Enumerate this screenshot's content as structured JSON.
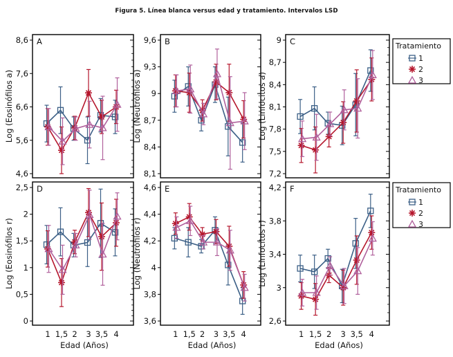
{
  "title": "Figura 5. Línea blanca versus edad y tratamiento. Intervalos LSD",
  "legend": {
    "title": "Tratamiento",
    "entries": [
      {
        "label": "1",
        "marker": "square",
        "color": "#3b5f86"
      },
      {
        "label": "2",
        "marker": "asterisk",
        "color": "#b5162c"
      },
      {
        "label": "3",
        "marker": "triangle",
        "color": "#b0609c"
      }
    ]
  },
  "chart_data": [
    {
      "type": "line",
      "panel": "A",
      "ylabel": "Log (Eosinófilos a)",
      "xlabel": "",
      "categories": [
        "1",
        "1,5",
        "2",
        "3",
        "3,5",
        "4"
      ],
      "ylim": [
        4.6,
        8.6
      ],
      "yticks": [
        4.6,
        5.6,
        6.6,
        7.6,
        8.6
      ],
      "ytick_labels": [
        "4,6",
        "5,6",
        "6,6",
        "7,6",
        "8,6"
      ],
      "minor_ticks": 5,
      "series": [
        {
          "name": "1",
          "values": [
            6.1,
            6.5,
            5.95,
            5.6,
            6.35,
            6.3
          ],
          "ci": [
            0.55,
            0.7,
            0.35,
            0.7,
            0.5,
            0.5
          ]
        },
        {
          "name": "2",
          "values": [
            6.0,
            5.3,
            5.97,
            7.02,
            6.3,
            6.6
          ],
          "ci": [
            0.55,
            0.7,
            0.35,
            0.7,
            0.5,
            0.5
          ]
        },
        {
          "name": "3",
          "values": [
            6.0,
            5.57,
            5.95,
            6.07,
            5.97,
            6.67
          ],
          "ci": [
            0.55,
            0.7,
            0.35,
            0.7,
            0.95,
            0.8
          ]
        }
      ]
    },
    {
      "type": "line",
      "panel": "B",
      "ylabel": "Log (Neutrófilos a)",
      "xlabel": "",
      "categories": [
        "1",
        "1,5",
        "2",
        "3",
        "3,5",
        "4"
      ],
      "ylim": [
        8.1,
        9.6
      ],
      "yticks": [
        8.1,
        8.4,
        8.7,
        9.0,
        9.3,
        9.6
      ],
      "ytick_labels": [
        "8,1",
        "8,4",
        "8,7",
        "9",
        "9,3",
        "9,6"
      ],
      "minor_ticks": 3,
      "series": [
        {
          "name": "1",
          "values": [
            8.97,
            9.08,
            8.7,
            9.1,
            8.63,
            8.45
          ],
          "ci": [
            0.18,
            0.22,
            0.12,
            0.2,
            0.33,
            0.22
          ]
        },
        {
          "name": "2",
          "values": [
            9.03,
            9.01,
            8.81,
            9.13,
            9.01,
            8.71
          ],
          "ci": [
            0.18,
            0.22,
            0.12,
            0.2,
            0.32,
            0.21
          ]
        },
        {
          "name": "3",
          "values": [
            9.03,
            9.05,
            8.77,
            9.22,
            8.67,
            8.69
          ],
          "ci": [
            0.18,
            0.27,
            0.12,
            0.28,
            0.52,
            0.32
          ]
        }
      ]
    },
    {
      "type": "line",
      "panel": "C",
      "ylabel": "Log (Linfocitos a)",
      "xlabel": "",
      "categories": [
        "1",
        "1,5",
        "2",
        "3",
        "3,5",
        "4"
      ],
      "ylim": [
        7.2,
        9.0
      ],
      "yticks": [
        7.2,
        7.5,
        7.8,
        8.1,
        8.4,
        8.7,
        9.0
      ],
      "ytick_labels": [
        "7,2",
        "7,5",
        "7,8",
        "8,1",
        "8,4",
        "8,7",
        "9"
      ],
      "minor_ticks": 3,
      "series": [
        {
          "name": "1",
          "values": [
            7.97,
            8.08,
            7.88,
            7.85,
            8.13,
            8.59
          ],
          "ci": [
            0.23,
            0.29,
            0.15,
            0.26,
            0.42,
            0.28
          ]
        },
        {
          "name": "2",
          "values": [
            7.58,
            7.52,
            7.7,
            7.89,
            8.18,
            8.47
          ],
          "ci": [
            0.23,
            0.31,
            0.14,
            0.28,
            0.42,
            0.29
          ]
        },
        {
          "name": "3",
          "values": [
            7.67,
            7.69,
            7.87,
            8.06,
            8.08,
            8.53
          ],
          "ci": [
            0.24,
            0.31,
            0.16,
            0.27,
            0.4,
            0.33
          ]
        }
      ]
    },
    {
      "type": "line",
      "panel": "D",
      "ylabel": "Log (Eosinófilos r)",
      "xlabel": "Edad (Años)",
      "categories": [
        "1",
        "1,5",
        "2",
        "3",
        "3,5",
        "4"
      ],
      "ylim": [
        0,
        2.5
      ],
      "yticks": [
        0,
        0.5,
        1.0,
        1.5,
        2.0,
        2.5
      ],
      "ytick_labels": [
        "0",
        "0,5",
        "1",
        "1,5",
        "2",
        "2,5"
      ],
      "minor_ticks": 5,
      "series": [
        {
          "name": "1",
          "values": [
            1.43,
            1.67,
            1.42,
            1.47,
            1.83,
            1.66
          ],
          "ci": [
            0.36,
            0.45,
            0.22,
            0.45,
            0.64,
            0.44
          ]
        },
        {
          "name": "2",
          "values": [
            1.35,
            0.72,
            1.48,
            2.03,
            1.58,
            1.84
          ],
          "ci": [
            0.34,
            0.45,
            0.22,
            0.45,
            0.63,
            0.44
          ]
        },
        {
          "name": "3",
          "values": [
            1.35,
            0.96,
            1.42,
            1.99,
            1.25,
            1.96
          ],
          "ci": [
            0.44,
            0.46,
            0.22,
            0.46,
            0.58,
            0.44
          ]
        }
      ]
    },
    {
      "type": "line",
      "panel": "E",
      "ylabel": "Log (Neutrófilos r)",
      "xlabel": "Edad (Años)",
      "categories": [
        "1",
        "1,5",
        "2",
        "3",
        "3,5",
        "4"
      ],
      "ylim": [
        3.6,
        4.6
      ],
      "yticks": [
        3.6,
        3.8,
        4.0,
        4.2,
        4.4,
        4.6
      ],
      "ytick_labels": [
        "3,6",
        "3,8",
        "4",
        "4,2",
        "4,4",
        "4,6"
      ],
      "minor_ticks": 4,
      "series": [
        {
          "name": "1",
          "values": [
            4.22,
            4.19,
            4.16,
            4.28,
            4.02,
            3.75
          ],
          "ci": [
            0.08,
            0.11,
            0.05,
            0.1,
            0.15,
            0.1
          ]
        },
        {
          "name": "2",
          "values": [
            4.33,
            4.38,
            4.25,
            4.27,
            4.16,
            3.87
          ],
          "ci": [
            0.08,
            0.1,
            0.05,
            0.09,
            0.15,
            0.1
          ]
        },
        {
          "name": "3",
          "values": [
            4.3,
            4.35,
            4.19,
            4.19,
            4.13,
            3.85
          ],
          "ci": [
            0.08,
            0.11,
            0.05,
            0.1,
            0.15,
            0.1
          ]
        }
      ]
    },
    {
      "type": "line",
      "panel": "F",
      "ylabel": "Log (Linfocitos r)",
      "xlabel": "Edad (Años)",
      "categories": [
        "1",
        "1,5",
        "2",
        "3",
        "3,5",
        "4"
      ],
      "ylim": [
        2.6,
        4.2
      ],
      "yticks": [
        2.6,
        3.0,
        3.4,
        3.8,
        4.2
      ],
      "ytick_labels": [
        "2,6",
        "3",
        "3,4",
        "3,8",
        "4,2"
      ],
      "minor_ticks": 4,
      "series": [
        {
          "name": "1",
          "values": [
            3.23,
            3.19,
            3.35,
            3.02,
            3.53,
            3.92
          ],
          "ci": [
            0.16,
            0.2,
            0.11,
            0.2,
            0.3,
            0.2
          ]
        },
        {
          "name": "2",
          "values": [
            2.9,
            2.86,
            3.15,
            3.0,
            3.33,
            3.66
          ],
          "ci": [
            0.16,
            0.19,
            0.09,
            0.21,
            0.29,
            0.2
          ]
        },
        {
          "name": "3",
          "values": [
            2.94,
            2.94,
            3.26,
            3.02,
            3.2,
            3.59
          ],
          "ci": [
            0.16,
            0.2,
            0.11,
            0.21,
            0.28,
            0.2
          ]
        }
      ]
    }
  ]
}
